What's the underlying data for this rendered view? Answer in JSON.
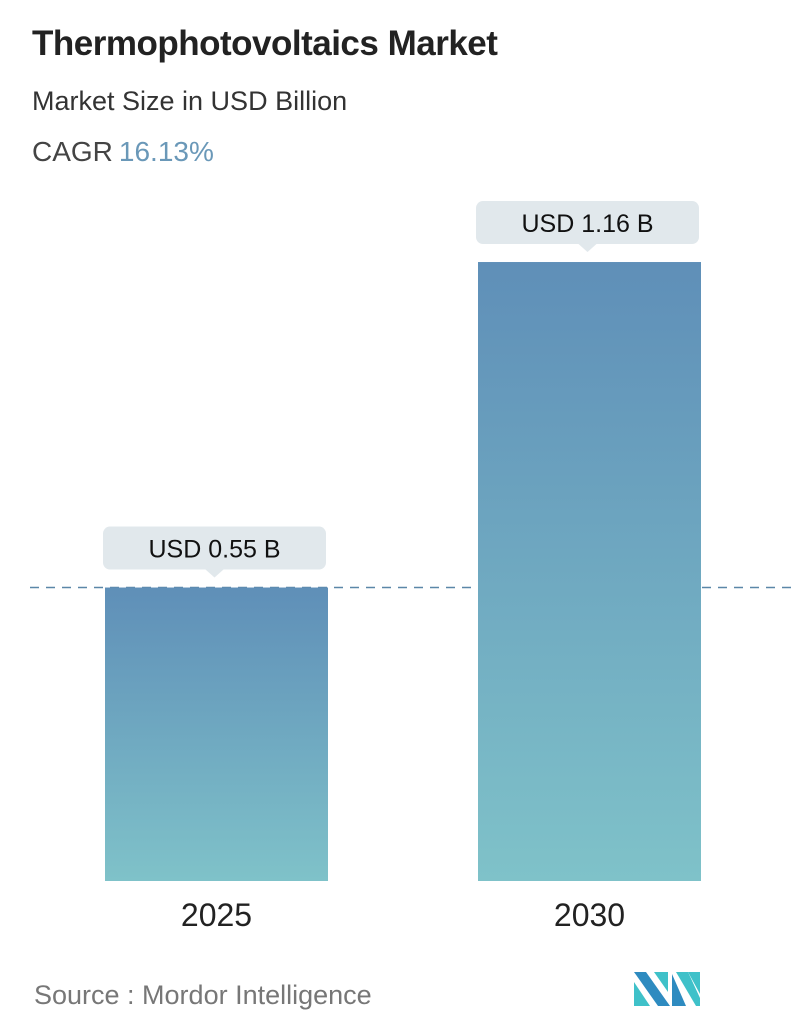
{
  "header": {
    "title": "Thermophotovoltaics Market",
    "subtitle": "Market Size in USD Billion",
    "cagr_label": "CAGR",
    "cagr_value": "16.13%"
  },
  "chart_data": {
    "type": "bar",
    "categories": [
      "2025",
      "2030"
    ],
    "values": [
      0.55,
      1.16
    ],
    "data_labels": [
      "USD 0.55 B",
      "USD 1.16 B"
    ],
    "unit": "USD Billion",
    "reference_line": 0.55,
    "grid": false,
    "colors": {
      "bar_top": "#5f8fb8",
      "bar_bottom": "#7fc2c9",
      "dash": "#5b87a8",
      "label_bg": "#e1e8ec"
    }
  },
  "footer": {
    "source": "Source :  Mordor Intelligence",
    "logo_text": "Mordor Intelligence"
  }
}
